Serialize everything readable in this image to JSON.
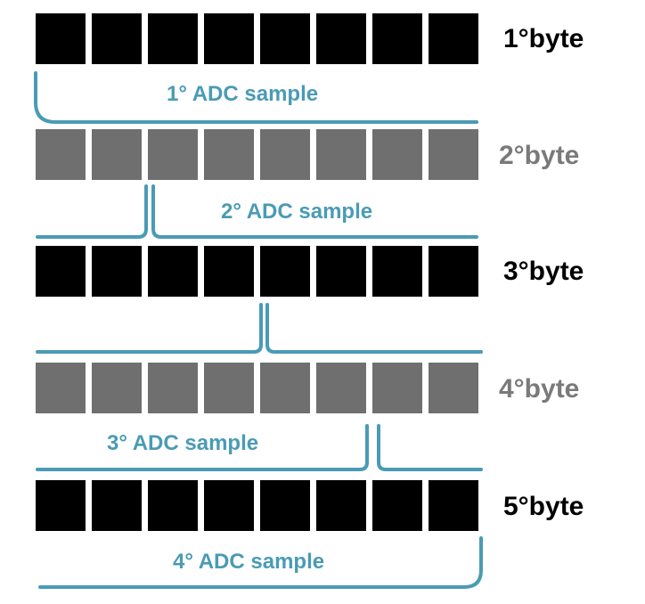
{
  "colors": {
    "dark_bit": "#000000",
    "light_bit": "#6f6f6f",
    "dark_text": "#000000",
    "light_text": "#7a7a7a",
    "bracket": "#4a9bb5"
  },
  "bits_per_byte": 8,
  "bytes": [
    {
      "label": "1°byte",
      "shade": "dark"
    },
    {
      "label": "2°byte",
      "shade": "light"
    },
    {
      "label": "3°byte",
      "shade": "dark"
    },
    {
      "label": "4°byte",
      "shade": "light"
    },
    {
      "label": "5°byte",
      "shade": "dark"
    }
  ],
  "samples": [
    {
      "label": "1° ADC sample"
    },
    {
      "label": "2° ADC sample"
    },
    {
      "label": "3° ADC sample"
    },
    {
      "label": "4° ADC sample"
    }
  ]
}
